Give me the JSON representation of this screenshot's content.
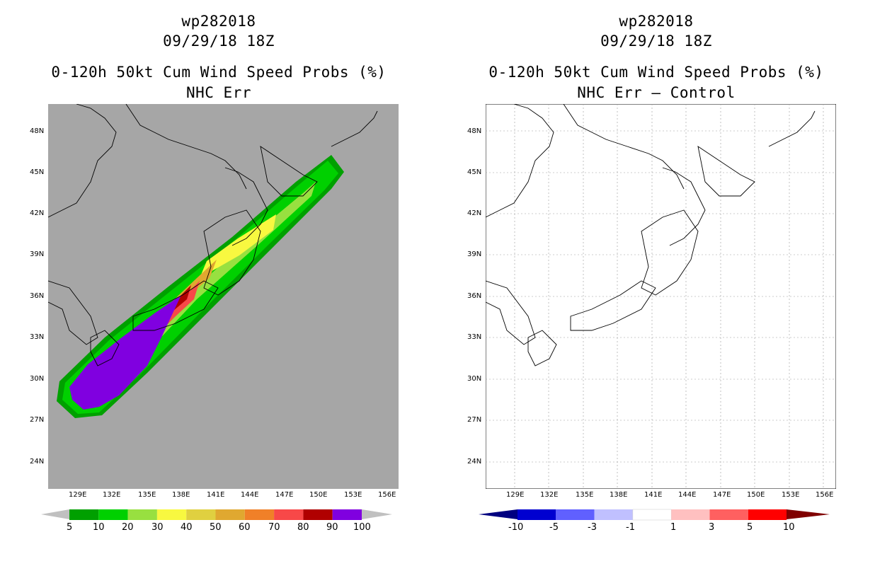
{
  "left": {
    "title1": "wp282018",
    "title2": "09/29/18 18Z",
    "title3": "0-120h 50kt Cum Wind Speed Probs (%)",
    "title4": "NHC Err",
    "background_color": "#a6a6a6",
    "colorbar": {
      "colors": [
        "#00a000",
        "#00d000",
        "#98e040",
        "#f8f840",
        "#e0d040",
        "#e0a830",
        "#f08028",
        "#f84848",
        "#b00000",
        "#8000e0"
      ],
      "labels": [
        "5",
        "10",
        "20",
        "30",
        "40",
        "50",
        "60",
        "70",
        "80",
        "90",
        "100"
      ],
      "low_color": "#c0c0c0",
      "high_color": "#c0c0c0"
    }
  },
  "right": {
    "title1": "wp282018",
    "title2": "09/29/18 18Z",
    "title3": "0-120h 50kt Cum Wind Speed Probs (%)",
    "title4": "NHC Err – Control",
    "background_color": "#ffffff",
    "colorbar": {
      "colors": [
        "#0000d0",
        "#6060ff",
        "#c0c0ff",
        "#ffffff",
        "#ffc0c0",
        "#ff6060",
        "#ff0000"
      ],
      "labels": [
        "-10",
        "-5",
        "-3",
        "-1",
        "1",
        "3",
        "5",
        "10"
      ],
      "low_color": "#000080",
      "high_color": "#800000"
    }
  },
  "map": {
    "lat_labels": [
      "48N",
      "45N",
      "42N",
      "39N",
      "36N",
      "33N",
      "30N",
      "27N",
      "24N"
    ],
    "lon_labels": [
      "129E",
      "132E",
      "135E",
      "138E",
      "141E",
      "144E",
      "147E",
      "150E",
      "153E",
      "156E"
    ]
  }
}
